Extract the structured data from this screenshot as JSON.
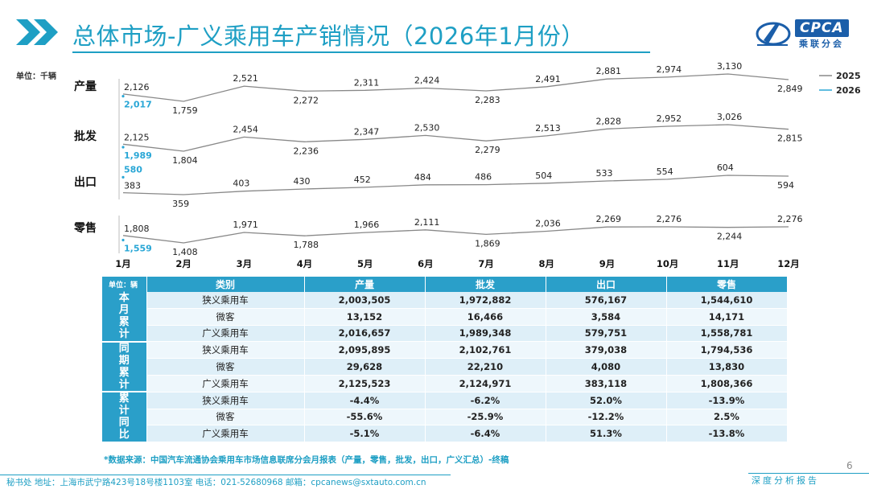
{
  "header": {
    "title": "总体市场-广义乘用车产销情况（2026年1月份）",
    "logo_text": "CPCA",
    "logo_sub": "乘联分会"
  },
  "unit_label": "单位：千辆",
  "chart_data": {
    "type": "line",
    "months": [
      "1月",
      "2月",
      "3月",
      "4月",
      "5月",
      "6月",
      "7月",
      "8月",
      "9月",
      "10月",
      "11月",
      "12月"
    ],
    "legend": [
      {
        "name": "2025",
        "color": "#888888"
      },
      {
        "name": "2026",
        "color": "#2aa7d6"
      }
    ],
    "legend_position": "top-right",
    "panels": [
      {
        "label": "产量",
        "y2025": [
          2126,
          1759,
          2521,
          2272,
          2311,
          2424,
          2283,
          2491,
          2881,
          2974,
          3130,
          2849
        ],
        "y2026": [
          2017
        ],
        "labels2025": [
          "2,126",
          "1,759",
          "2,521",
          "2,272",
          "2,311",
          "2,424",
          "2,283",
          "2,491",
          "2,881",
          "2,974",
          "3,130",
          "2,849"
        ],
        "labels2026": [
          "2,017"
        ]
      },
      {
        "label": "批发",
        "y2025": [
          2125,
          1804,
          2454,
          2236,
          2347,
          2530,
          2279,
          2513,
          2828,
          2952,
          3026,
          2815
        ],
        "y2026": [
          1989
        ],
        "labels2025": [
          "2,125",
          "1,804",
          "2,454",
          "2,236",
          "2,347",
          "2,530",
          "2,279",
          "2,513",
          "2,828",
          "2,952",
          "3,026",
          "2,815"
        ],
        "labels2026": [
          "1,989"
        ]
      },
      {
        "label": "出口",
        "y2025": [
          383,
          359,
          403,
          430,
          452,
          484,
          486,
          504,
          533,
          554,
          604,
          594
        ],
        "y2026": [
          580
        ],
        "labels2025": [
          "383",
          "359",
          "403",
          "430",
          "452",
          "484",
          "486",
          "504",
          "533",
          "554",
          "604",
          "594"
        ],
        "labels2026": [
          "580"
        ]
      },
      {
        "label": "零售",
        "y2025": [
          1808,
          1408,
          1971,
          1788,
          1966,
          2111,
          1869,
          2036,
          2269,
          2276,
          2244,
          2276
        ],
        "y2026": [
          1559
        ],
        "labels2025": [
          "1,808",
          "1,408",
          "1,971",
          "1,788",
          "1,966",
          "2,111",
          "1,869",
          "2,036",
          "2,269",
          "2,276",
          "2,244",
          "2,276"
        ],
        "labels2026": [
          "1,559"
        ]
      }
    ]
  },
  "table": {
    "unit": "单位：辆",
    "headers": [
      "类别",
      "产量",
      "批发",
      "出口",
      "零售"
    ],
    "groups": [
      {
        "name": "本月累计",
        "rows": [
          [
            "狭义乘用车",
            "2,003,505",
            "1,972,882",
            "576,167",
            "1,544,610"
          ],
          [
            "微客",
            "13,152",
            "16,466",
            "3,584",
            "14,171"
          ],
          [
            "广义乘用车",
            "2,016,657",
            "1,989,348",
            "579,751",
            "1,558,781"
          ]
        ]
      },
      {
        "name": "同期累计",
        "rows": [
          [
            "狭义乘用车",
            "2,095,895",
            "2,102,761",
            "379,038",
            "1,794,536"
          ],
          [
            "微客",
            "29,628",
            "22,210",
            "4,080",
            "13,830"
          ],
          [
            "广义乘用车",
            "2,125,523",
            "2,124,971",
            "383,118",
            "1,808,366"
          ]
        ]
      },
      {
        "name": "累计同比",
        "rows": [
          [
            "狭义乘用车",
            "-4.4%",
            "-6.2%",
            "52.0%",
            "-13.9%"
          ],
          [
            "微客",
            "-55.6%",
            "-25.9%",
            "-12.2%",
            "2.5%"
          ],
          [
            "广义乘用车",
            "-5.1%",
            "-6.4%",
            "51.3%",
            "-13.8%"
          ]
        ]
      }
    ]
  },
  "footnote": "*数据来源：中国汽车流通协会乘用车市场信息联席分会月报表（产量，零售，批发，出口，广义汇总）-终稿",
  "footer": {
    "text": "秘书处   地址：上海市武宁路423号18号楼1103室  电话：021-52680968   邮箱：cpcanews@sxtauto.com.cn",
    "right": "深度分析报告",
    "page": "6"
  }
}
